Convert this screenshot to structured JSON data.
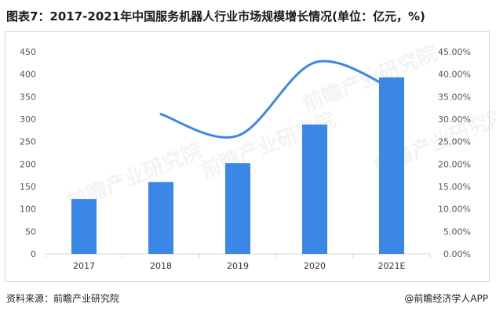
{
  "title": "图表7：2017-2021年中国服务机器人行业市场规模增长情况(单位：亿元，%)",
  "source": "资料来源：前瞻产业研究院",
  "credit": "@前瞻经济学人APP",
  "watermark": "前瞻产业研究院",
  "colors": {
    "bar": "#3b87e8",
    "line": "#3b87e8",
    "axis": "#d4d4d4",
    "text": "#555555"
  },
  "chart_data": {
    "type": "bar",
    "categories": [
      "2017",
      "2018",
      "2019",
      "2020",
      "2021E"
    ],
    "series": [
      {
        "type": "bar",
        "axis": "left",
        "values": [
          122,
          160,
          202,
          288,
          393
        ]
      },
      {
        "type": "line",
        "axis": "right",
        "smooth": true,
        "values": [
          null,
          31.1,
          26.3,
          42.6,
          36.9
        ]
      }
    ],
    "ylim": [
      0,
      450
    ],
    "yticks": [
      "0",
      "50",
      "100",
      "150",
      "200",
      "250",
      "300",
      "350",
      "400",
      "450"
    ],
    "y2lim": [
      0,
      45
    ],
    "y2ticks": [
      "0.00%",
      "5.00%",
      "10.00%",
      "15.00%",
      "20.00%",
      "25.00%",
      "30.00%",
      "35.00%",
      "40.00%",
      "45.00%"
    ],
    "grid": false,
    "legend": "none"
  }
}
